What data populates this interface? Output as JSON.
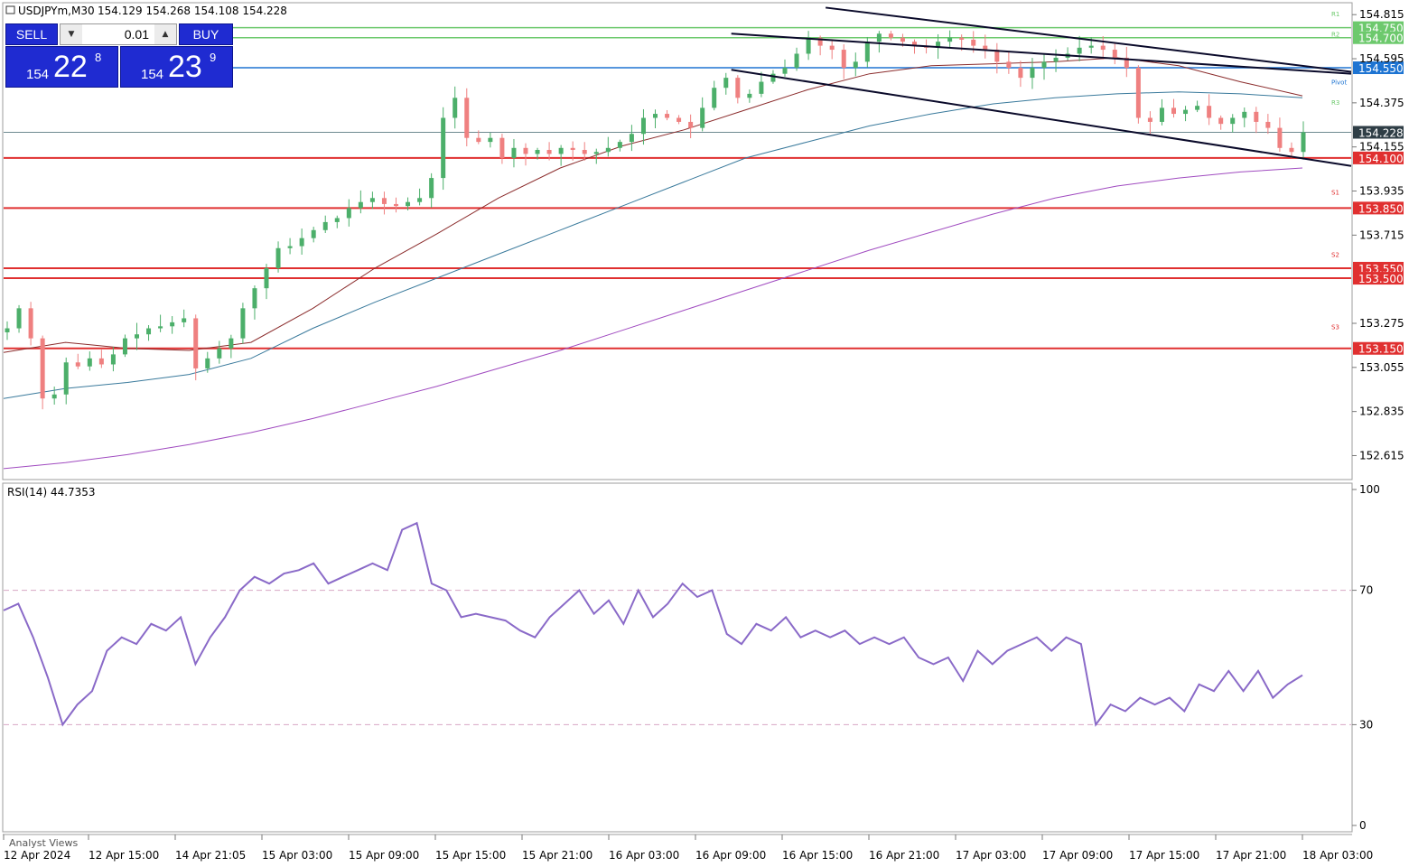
{
  "header": {
    "symbol": "USDJPYm,M30",
    "ohlc": "154.129 154.268 154.108 154.228"
  },
  "oneclick": {
    "sell_label": "SELL",
    "buy_label": "BUY",
    "lot": "0.01",
    "sell_prefix": "154",
    "sell_big": "22",
    "sell_sup": "8",
    "buy_prefix": "154",
    "buy_big": "23",
    "buy_sup": "9"
  },
  "colors": {
    "bull": "#26a69a",
    "bull_candle": "#4caf6a",
    "bear_candle": "#ef8080",
    "support": "#e03030",
    "resistance": "#6dc96d",
    "pivot": "#1e74d2",
    "channel": "#0a0a2a",
    "ma_fast": "#8b2c2c",
    "ma_mid": "#3a7a9c",
    "ma_slow": "#a04bc0",
    "rsi": "#8a6ac8",
    "current_price_bg": "#2f3e46"
  },
  "chart_data": [
    {
      "type": "candlestick",
      "title": "USDJPYm,M30",
      "ylim": [
        152.5,
        154.87
      ],
      "y_ticks": [
        154.815,
        154.595,
        154.375,
        154.155,
        153.935,
        153.715,
        153.275,
        153.055,
        152.835,
        152.615
      ],
      "x_ticks": [
        "12 Apr 2024",
        "12 Apr 15:00",
        "14 Apr 21:05",
        "15 Apr 03:00",
        "15 Apr 09:00",
        "15 Apr 15:00",
        "15 Apr 21:00",
        "16 Apr 03:00",
        "16 Apr 09:00",
        "16 Apr 15:00",
        "16 Apr 21:00",
        "17 Apr 03:00",
        "17 Apr 09:00",
        "17 Apr 15:00",
        "17 Apr 21:00",
        "18 Apr 03:00"
      ],
      "current_price": "154.228",
      "levels": [
        {
          "label": "154.750",
          "price": 154.75,
          "kind": "resistance"
        },
        {
          "label": "154.700",
          "price": 154.7,
          "kind": "resistance"
        },
        {
          "label": "154.550",
          "price": 154.55,
          "kind": "pivot"
        },
        {
          "label": "154.100",
          "price": 154.1,
          "kind": "support"
        },
        {
          "label": "153.850",
          "price": 153.85,
          "kind": "support"
        },
        {
          "label": "153.550",
          "price": 153.55,
          "kind": "support"
        },
        {
          "label": "153.500",
          "price": 153.5,
          "kind": "support"
        },
        {
          "label": "153.150",
          "price": 153.15,
          "kind": "support"
        }
      ],
      "pivot_labels": [
        "R1",
        "R2",
        "R3",
        "Pivot",
        "S1",
        "S2",
        "S3"
      ],
      "close_path": [
        153.25,
        153.35,
        153.2,
        152.9,
        152.92,
        153.08,
        153.06,
        153.1,
        153.07,
        153.12,
        153.2,
        153.22,
        153.25,
        153.26,
        153.28,
        153.3,
        153.05,
        153.1,
        153.15,
        153.2,
        153.35,
        153.45,
        153.55,
        153.65,
        153.66,
        153.7,
        153.74,
        153.78,
        153.8,
        153.85,
        153.88,
        153.9,
        153.87,
        153.86,
        153.88,
        153.9,
        154.0,
        154.3,
        154.4,
        154.2,
        154.18,
        154.2,
        154.1,
        154.15,
        154.12,
        154.14,
        154.12,
        154.15,
        154.14,
        154.12,
        154.13,
        154.15,
        154.18,
        154.22,
        154.3,
        154.32,
        154.3,
        154.28,
        154.25,
        154.35,
        154.45,
        154.5,
        154.4,
        154.42,
        154.48,
        154.52,
        154.55,
        154.62,
        154.7,
        154.66,
        154.64,
        154.55,
        154.58,
        154.68,
        154.72,
        154.7,
        154.68,
        154.66,
        154.65,
        154.68,
        154.7,
        154.69,
        154.66,
        154.64,
        154.58,
        154.55,
        154.5,
        154.55,
        154.58,
        154.6,
        154.62,
        154.65,
        154.66,
        154.64,
        154.6,
        154.55,
        154.3,
        154.28,
        154.35,
        154.32,
        154.34,
        154.36,
        154.3,
        154.27,
        154.3,
        154.33,
        154.28,
        154.25,
        154.15,
        154.13,
        154.228
      ],
      "moving_averages": [
        {
          "name": "MA fast",
          "values": [
            153.13,
            153.18,
            153.15,
            153.14,
            153.18,
            153.35,
            153.55,
            153.72,
            153.9,
            154.05,
            154.16,
            154.24,
            154.34,
            154.44,
            154.52,
            154.56,
            154.57,
            154.58,
            154.6,
            154.56,
            154.48,
            154.41
          ]
        },
        {
          "name": "MA mid",
          "values": [
            152.9,
            152.95,
            152.98,
            153.02,
            153.1,
            153.25,
            153.38,
            153.5,
            153.62,
            153.74,
            153.86,
            153.98,
            154.1,
            154.18,
            154.26,
            154.32,
            154.37,
            154.4,
            154.42,
            154.43,
            154.42,
            154.4
          ]
        },
        {
          "name": "MA slow",
          "values": [
            152.55,
            152.58,
            152.62,
            152.67,
            152.73,
            152.8,
            152.88,
            152.96,
            153.05,
            153.14,
            153.24,
            153.34,
            153.44,
            153.54,
            153.64,
            153.73,
            153.82,
            153.9,
            153.96,
            154.0,
            154.03,
            154.05
          ]
        }
      ],
      "trendlines": [
        {
          "name": "channel upper",
          "from": [
            0.54,
            154.72
          ],
          "to": [
            1.0,
            154.52
          ]
        },
        {
          "name": "channel lower",
          "from": [
            0.54,
            154.54
          ],
          "to": [
            1.0,
            154.06
          ]
        },
        {
          "name": "channel outer",
          "from": [
            0.61,
            154.85
          ],
          "to": [
            1.0,
            154.53
          ]
        }
      ]
    },
    {
      "type": "line",
      "title": "RSI(14) 44.7353",
      "ylim": [
        0,
        100
      ],
      "y_ticks": [
        100,
        70,
        30,
        0
      ],
      "levels": [
        70,
        30
      ],
      "series": [
        {
          "name": "RSI(14)",
          "values": [
            64,
            66,
            56,
            44,
            30,
            36,
            40,
            52,
            56,
            54,
            60,
            58,
            62,
            48,
            56,
            62,
            70,
            74,
            72,
            75,
            76,
            78,
            72,
            74,
            76,
            78,
            76,
            88,
            90,
            72,
            70,
            62,
            63,
            62,
            61,
            58,
            56,
            62,
            66,
            70,
            63,
            67,
            60,
            70,
            62,
            66,
            72,
            68,
            70,
            57,
            54,
            60,
            58,
            62,
            56,
            58,
            56,
            58,
            54,
            56,
            54,
            56,
            50,
            48,
            50,
            43,
            52,
            48,
            52,
            54,
            56,
            52,
            56,
            54,
            30,
            36,
            34,
            38,
            36,
            38,
            34,
            42,
            40,
            46,
            40,
            46,
            38,
            42,
            44.7353
          ]
        }
      ]
    }
  ]
}
